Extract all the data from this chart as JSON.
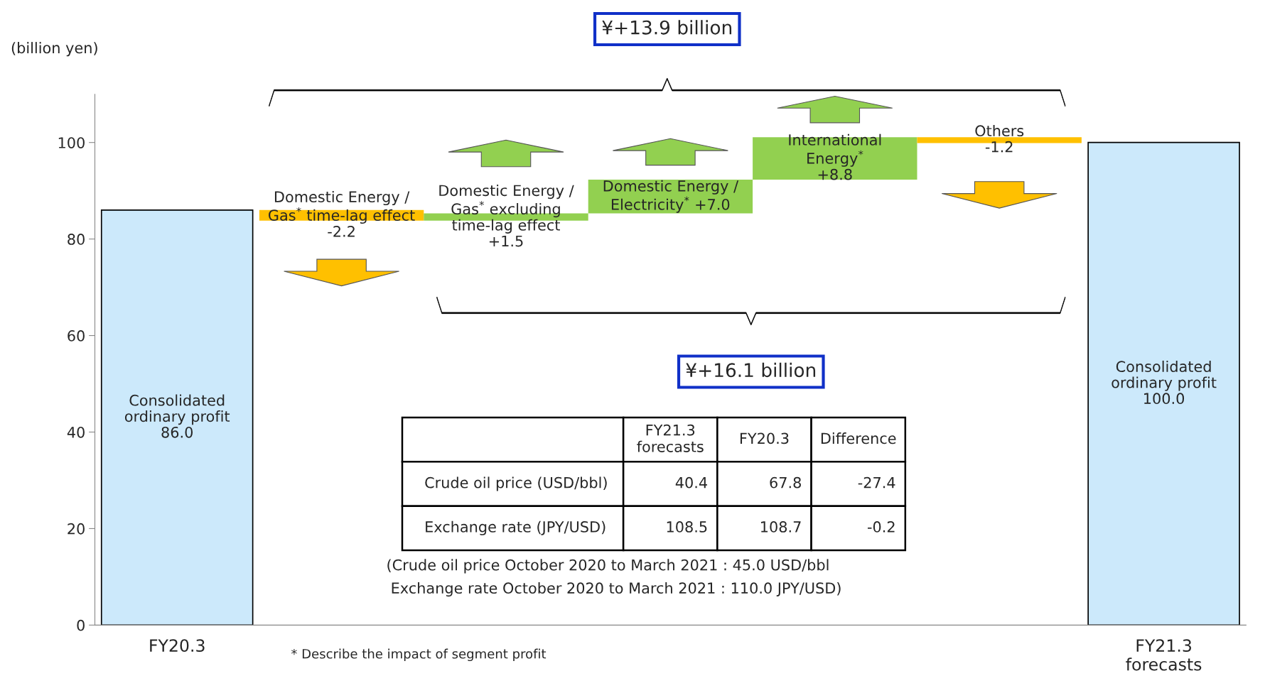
{
  "chart_data": {
    "type": "bar",
    "ylabel": "(billion yen)",
    "categories": [
      "FY20.3",
      null,
      null,
      null,
      null,
      null,
      "FY21.3\nforecasts"
    ],
    "base": [
      0,
      86.0,
      83.8,
      85.3,
      92.3,
      101.1,
      0
    ],
    "values": [
      86.0,
      -2.2,
      1.5,
      7.0,
      8.8,
      -1.2,
      100.0
    ],
    "colors": [
      "#cce9fb",
      "#ffc000",
      "#92d050",
      "#92d050",
      "#92d050",
      "#ffc000",
      "#cce9fb"
    ],
    "value_labels": [
      "Consolidated\nordinary profit\n86.0",
      "Domestic Energy /\nGas$^{*}$ time-lag effect\n-2.2",
      "Domestic Energy /\nGas$^{*}$ excluding\ntime-lag effect\n+1.5",
      "Domestic Energy /\nElectricity$^{*}$ +7.0",
      "International\nEnergy$^{*}$\n+8.8",
      "Others\n-1.2",
      "Consolidated\nordinary profit\n100.0"
    ],
    "ylim": [
      0,
      110
    ],
    "yticks": [
      0,
      20,
      40,
      60,
      80,
      100
    ],
    "grid": false,
    "legend": false,
    "annotations": [
      "¥+13.9 billion",
      "¥+16.1 billion",
      "FY21.3\nforecasts",
      "FY20.3",
      "Difference",
      "Crude oil price (USD/bbl)",
      "40.4",
      "67.8",
      "-27.4",
      "Exchange rate (JPY/USD)",
      "108.5",
      "108.7",
      "-0.2",
      "(Crude oil price October 2020 to March 2021 : 45.0 USD/bbl",
      "Exchange rate October 2020 to March 2021 : 110.0 JPY/USD)",
      "* Describe the impact of segment profit"
    ]
  }
}
